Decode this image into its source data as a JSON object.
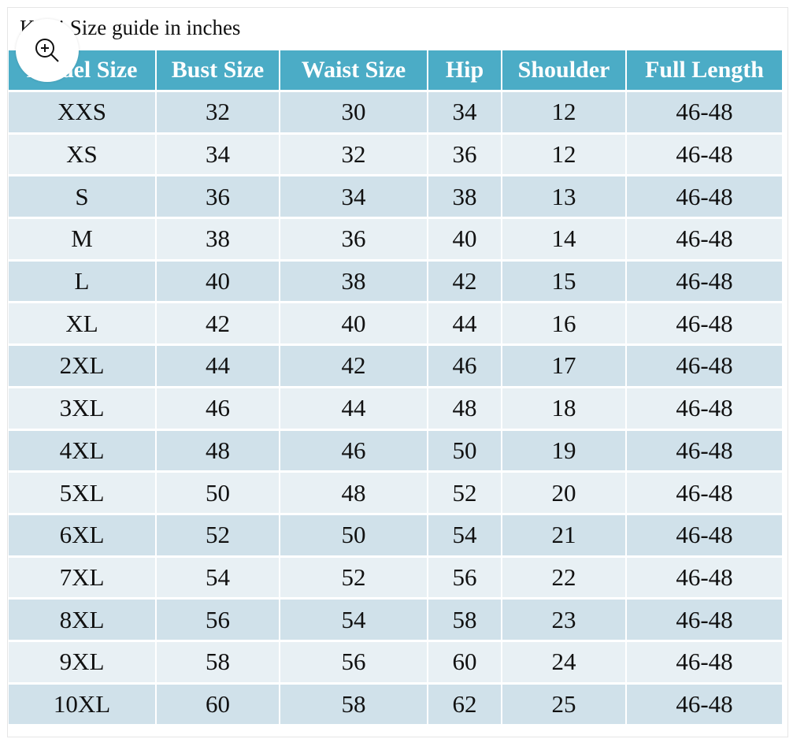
{
  "title": "Kurti Size guide in inches",
  "zoom_button": {
    "icon": "zoom-in-icon"
  },
  "colors": {
    "header": "#4bacc6",
    "row_odd": "#d0e1ea",
    "row_even": "#e8f0f4"
  },
  "table": {
    "headers": [
      "Model Size",
      "Bust Size",
      "Waist Size",
      "Hip",
      "Shoulder",
      "Full Length"
    ],
    "rows": [
      [
        "XXS",
        "32",
        "30",
        "34",
        "12",
        "46-48"
      ],
      [
        "XS",
        "34",
        "32",
        "36",
        "12",
        "46-48"
      ],
      [
        "S",
        "36",
        "34",
        "38",
        "13",
        "46-48"
      ],
      [
        "M",
        "38",
        "36",
        "40",
        "14",
        "46-48"
      ],
      [
        "L",
        "40",
        "38",
        "42",
        "15",
        "46-48"
      ],
      [
        "XL",
        "42",
        "40",
        "44",
        "16",
        "46-48"
      ],
      [
        "2XL",
        "44",
        "42",
        "46",
        "17",
        "46-48"
      ],
      [
        "3XL",
        "46",
        "44",
        "48",
        "18",
        "46-48"
      ],
      [
        "4XL",
        "48",
        "46",
        "50",
        "19",
        "46-48"
      ],
      [
        "5XL",
        "50",
        "48",
        "52",
        "20",
        "46-48"
      ],
      [
        "6XL",
        "52",
        "50",
        "54",
        "21",
        "46-48"
      ],
      [
        "7XL",
        "54",
        "52",
        "56",
        "22",
        "46-48"
      ],
      [
        "8XL",
        "56",
        "54",
        "58",
        "23",
        "46-48"
      ],
      [
        "9XL",
        "58",
        "56",
        "60",
        "24",
        "46-48"
      ],
      [
        "10XL",
        "60",
        "58",
        "62",
        "25",
        "46-48"
      ]
    ]
  }
}
